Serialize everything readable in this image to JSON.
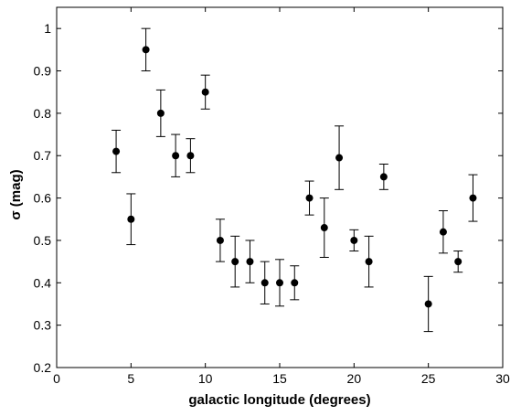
{
  "chart_data": {
    "type": "scatter",
    "title": "",
    "xlabel": "galactic longitude (degrees)",
    "ylabel": "σ (mag)",
    "xlim": [
      0,
      30
    ],
    "ylim": [
      0.2,
      1.05
    ],
    "xticks": [
      0,
      5,
      10,
      15,
      20,
      25,
      30
    ],
    "xtick_labels": [
      "0",
      "5",
      "10",
      "15",
      "20",
      "25",
      "30"
    ],
    "yticks": [
      0.2,
      0.3,
      0.4,
      0.5,
      0.6,
      0.7,
      0.8,
      0.9,
      1.0
    ],
    "ytick_labels": [
      "0.2",
      "0.3",
      "0.4",
      "0.5",
      "0.6",
      "0.7",
      "0.8",
      "0.9",
      "1"
    ],
    "grid": false,
    "legend": null,
    "marker": "filled-circle",
    "series": [
      {
        "points": [
          {
            "x": 4,
            "y": 0.71,
            "err_lo": 0.05,
            "err_hi": 0.05
          },
          {
            "x": 5,
            "y": 0.55,
            "err_lo": 0.06,
            "err_hi": 0.06
          },
          {
            "x": 6,
            "y": 0.95,
            "err_lo": 0.05,
            "err_hi": 0.05
          },
          {
            "x": 7,
            "y": 0.8,
            "err_lo": 0.055,
            "err_hi": 0.055
          },
          {
            "x": 8,
            "y": 0.7,
            "err_lo": 0.05,
            "err_hi": 0.05
          },
          {
            "x": 9,
            "y": 0.7,
            "err_lo": 0.04,
            "err_hi": 0.04
          },
          {
            "x": 10,
            "y": 0.85,
            "err_lo": 0.04,
            "err_hi": 0.04
          },
          {
            "x": 11,
            "y": 0.5,
            "err_lo": 0.05,
            "err_hi": 0.05
          },
          {
            "x": 12,
            "y": 0.45,
            "err_lo": 0.06,
            "err_hi": 0.06
          },
          {
            "x": 13,
            "y": 0.45,
            "err_lo": 0.05,
            "err_hi": 0.05
          },
          {
            "x": 14,
            "y": 0.4,
            "err_lo": 0.05,
            "err_hi": 0.05
          },
          {
            "x": 15,
            "y": 0.4,
            "err_lo": 0.055,
            "err_hi": 0.055
          },
          {
            "x": 16,
            "y": 0.4,
            "err_lo": 0.04,
            "err_hi": 0.04
          },
          {
            "x": 17,
            "y": 0.6,
            "err_lo": 0.04,
            "err_hi": 0.04
          },
          {
            "x": 18,
            "y": 0.53,
            "err_lo": 0.07,
            "err_hi": 0.07
          },
          {
            "x": 19,
            "y": 0.695,
            "err_lo": 0.075,
            "err_hi": 0.075
          },
          {
            "x": 20,
            "y": 0.5,
            "err_lo": 0.025,
            "err_hi": 0.025
          },
          {
            "x": 21,
            "y": 0.45,
            "err_lo": 0.06,
            "err_hi": 0.06
          },
          {
            "x": 22,
            "y": 0.65,
            "err_lo": 0.03,
            "err_hi": 0.03
          },
          {
            "x": 25,
            "y": 0.35,
            "err_lo": 0.065,
            "err_hi": 0.065
          },
          {
            "x": 26,
            "y": 0.52,
            "err_lo": 0.05,
            "err_hi": 0.05
          },
          {
            "x": 27,
            "y": 0.45,
            "err_lo": 0.025,
            "err_hi": 0.025
          },
          {
            "x": 28,
            "y": 0.6,
            "err_lo": 0.055,
            "err_hi": 0.055
          }
        ]
      }
    ]
  }
}
